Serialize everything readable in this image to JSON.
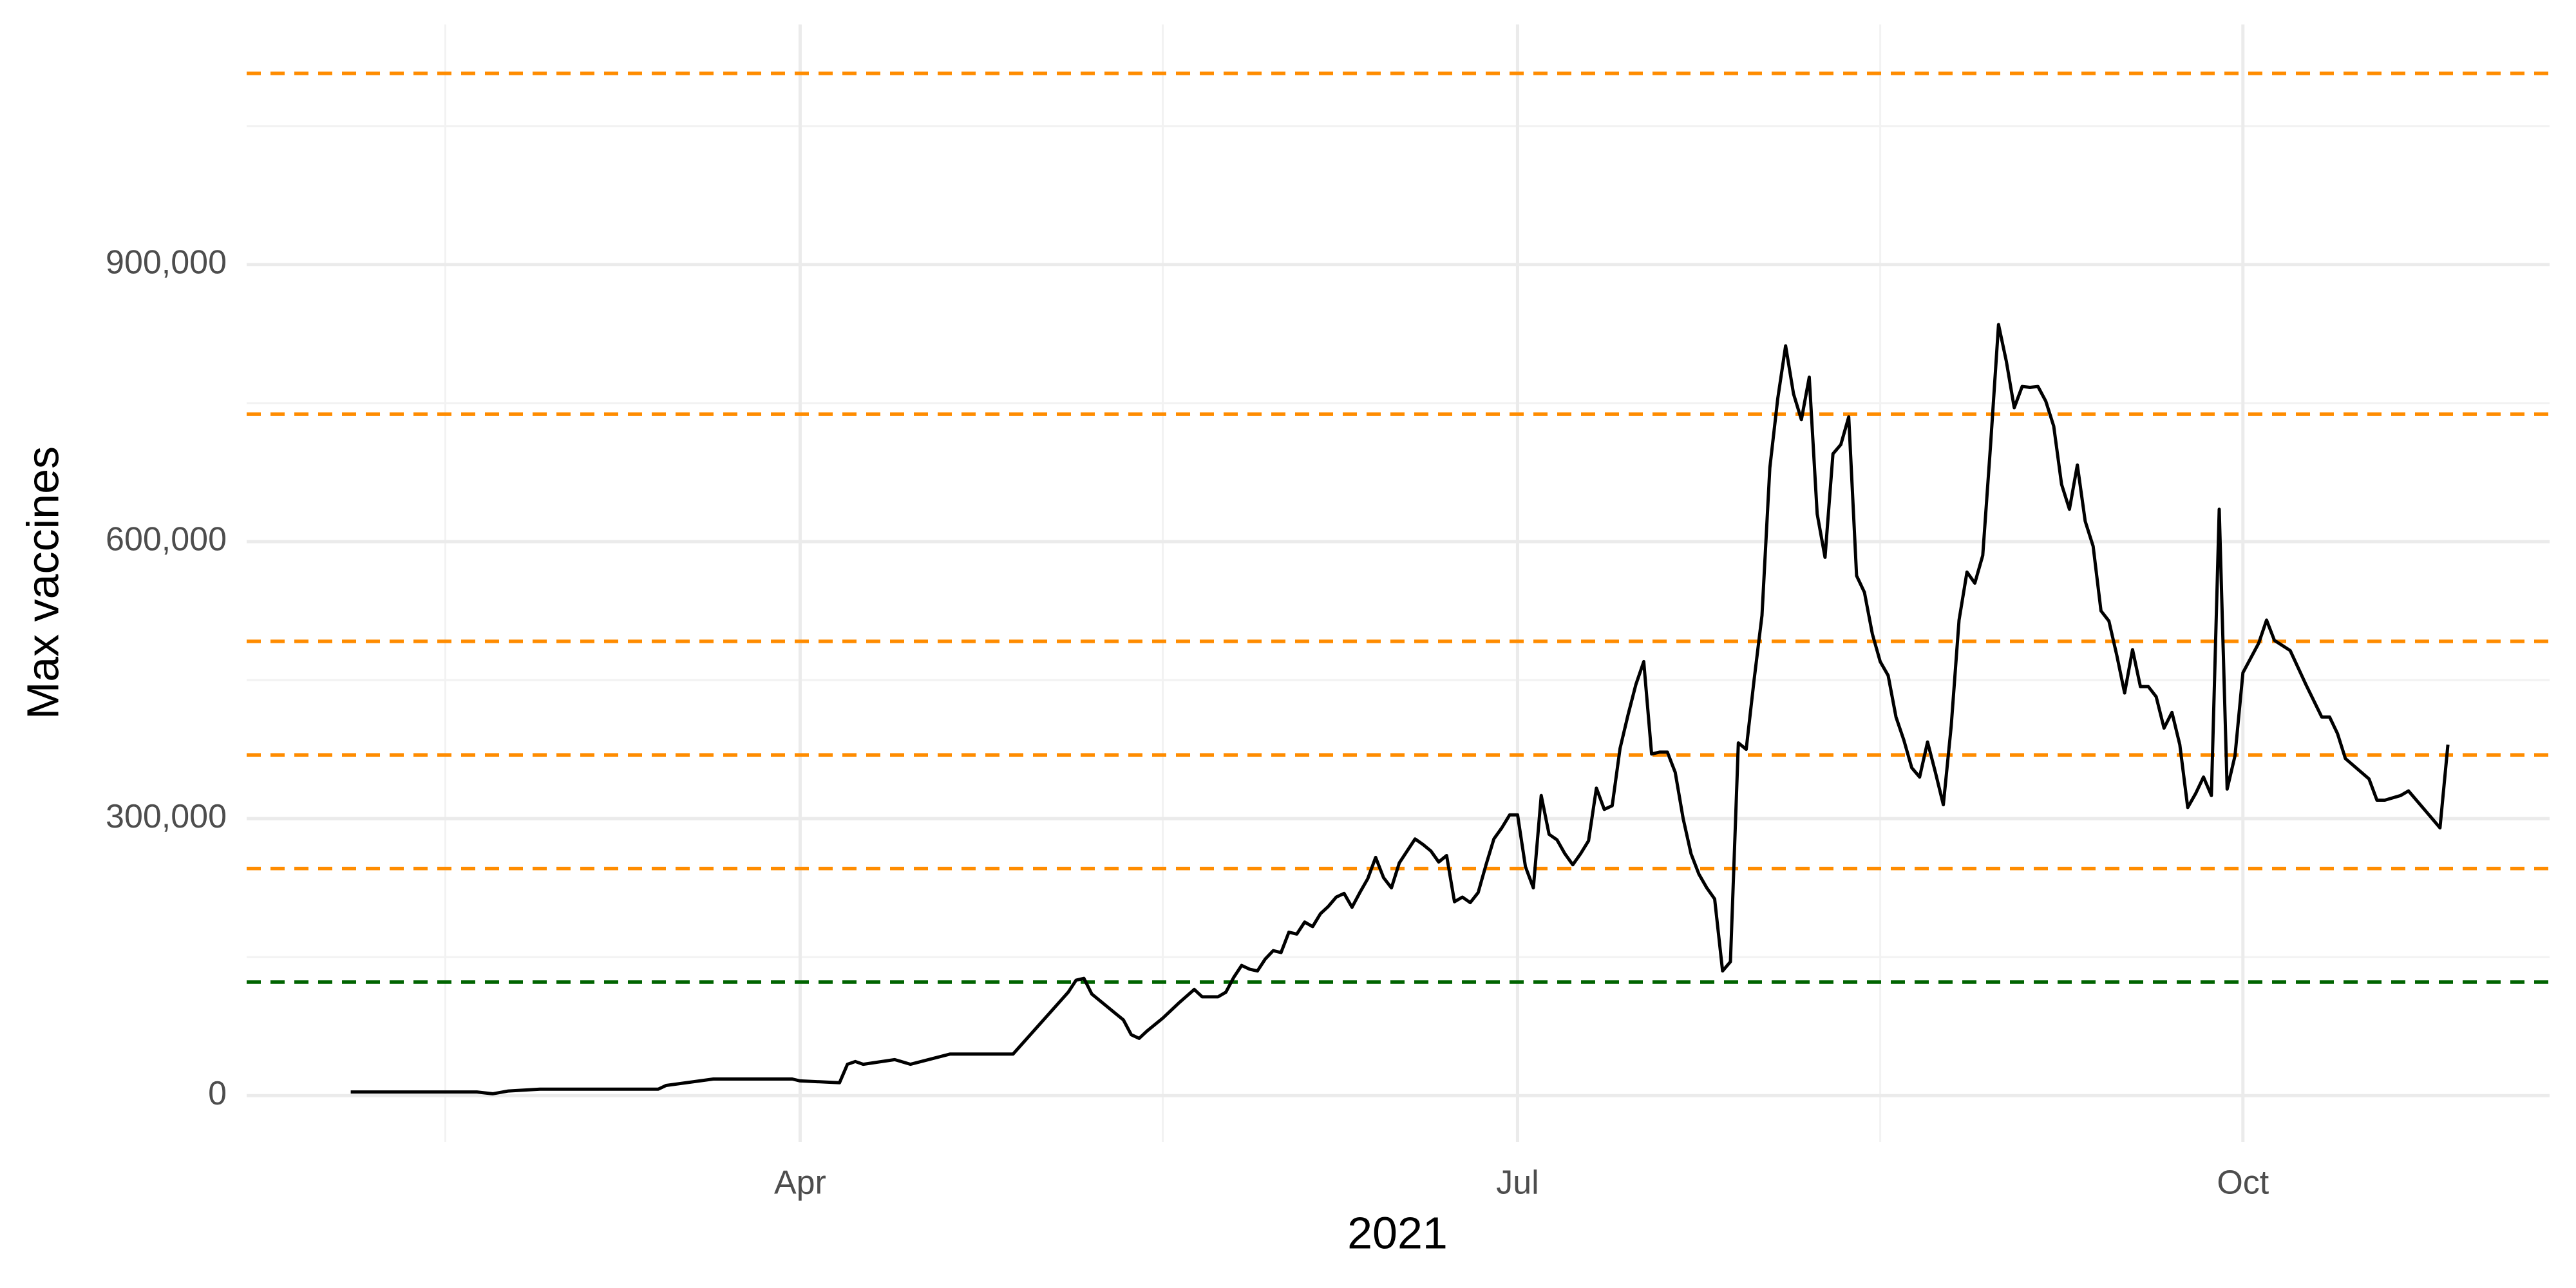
{
  "chart_data": {
    "type": "line",
    "x_label": "2021",
    "y_label": "Max vaccines",
    "xlim": [
      20.8,
      312.9
    ],
    "ylim": [
      -50000,
      1160000
    ],
    "xticks": [
      {
        "value": 91,
        "label": "Apr"
      },
      {
        "value": 182,
        "label": "Jul"
      },
      {
        "value": 274,
        "label": "Oct"
      }
    ],
    "xminor": [
      46,
      137,
      228
    ],
    "yticks": [
      0,
      {
        "value": 300000,
        "label": "300,000"
      },
      {
        "value": 600000,
        "label": "600,000"
      },
      {
        "value": 900000,
        "label": "900,000"
      }
    ],
    "yminor": [
      150000,
      450000,
      750000,
      1050000
    ],
    "grid": true,
    "color": "#000000",
    "x": [
      34,
      50,
      52,
      54,
      58,
      73,
      74,
      80,
      90,
      91,
      96,
      97,
      98,
      99,
      103,
      105,
      110,
      118,
      125,
      126,
      127,
      128,
      131,
      132,
      133,
      134,
      135,
      137,
      139,
      141,
      142,
      144,
      145,
      146,
      147,
      148,
      149,
      150,
      151,
      152,
      153,
      154,
      155,
      156,
      157,
      158,
      159,
      160,
      161,
      162,
      163,
      164,
      165,
      166,
      167,
      168,
      169,
      170,
      171,
      172,
      173,
      174,
      175,
      176,
      177,
      178,
      179,
      180,
      181,
      182,
      183,
      184,
      185,
      186,
      187,
      188,
      189,
      190,
      191,
      192,
      193,
      194,
      195,
      196,
      197,
      198,
      199,
      200,
      201,
      202,
      203,
      204,
      205,
      206,
      207,
      208,
      209,
      210,
      211,
      212,
      213,
      214,
      215,
      216,
      217,
      218,
      219,
      220,
      221,
      222,
      223,
      224,
      225,
      226,
      227,
      228,
      229,
      230,
      231,
      232,
      233,
      234,
      235,
      236,
      237,
      238,
      239,
      240,
      241,
      242,
      243,
      244,
      245,
      246,
      247,
      248,
      249,
      250,
      251,
      252,
      253,
      254,
      255,
      256,
      257,
      258,
      259,
      260,
      261,
      262,
      263,
      264,
      265,
      266,
      267,
      268,
      269,
      270,
      271,
      272,
      273,
      274,
      276,
      277,
      278,
      280,
      282,
      284,
      285,
      286,
      287,
      290,
      291,
      292,
      294,
      295,
      298,
      299,
      300
    ],
    "values": [
      4000,
      4000,
      2000,
      5000,
      7000,
      7000,
      11000,
      18000,
      18000,
      16000,
      14000,
      34000,
      37000,
      34000,
      39000,
      34000,
      45000,
      45000,
      112000,
      125000,
      127000,
      110000,
      89000,
      82000,
      66000,
      62000,
      70000,
      84000,
      100000,
      115000,
      107000,
      107000,
      112000,
      128000,
      141000,
      137000,
      135000,
      148000,
      157000,
      155000,
      177000,
      175000,
      188000,
      183000,
      197000,
      205000,
      215000,
      219000,
      204000,
      220000,
      235000,
      258000,
      236000,
      225000,
      252000,
      265000,
      278000,
      272000,
      265000,
      253000,
      260000,
      210000,
      215000,
      209000,
      220000,
      250000,
      278000,
      290000,
      304000,
      304000,
      248000,
      225000,
      325000,
      283000,
      277000,
      262000,
      250000,
      262000,
      276000,
      333000,
      310000,
      314000,
      376000,
      412000,
      445000,
      470000,
      370000,
      372000,
      372000,
      350000,
      300000,
      262000,
      240000,
      225000,
      213000,
      135000,
      145000,
      382000,
      375000,
      450000,
      520000,
      680000,
      755000,
      812000,
      760000,
      732000,
      778000,
      630000,
      583000,
      695000,
      705000,
      735000,
      563000,
      545000,
      500000,
      470000,
      455000,
      410000,
      385000,
      355000,
      345000,
      383000,
      350000,
      315000,
      400000,
      515000,
      567000,
      555000,
      585000,
      705000,
      835000,
      795000,
      745000,
      768000,
      767000,
      768000,
      752000,
      725000,
      662000,
      635000,
      683000,
      622000,
      595000,
      525000,
      514000,
      477000,
      436000,
      483000,
      443000,
      443000,
      432000,
      398000,
      415000,
      380000,
      312000,
      327000,
      345000,
      325000,
      635000,
      332000,
      368000,
      458000,
      490000,
      515000,
      493000,
      482000,
      445000,
      410000,
      410000,
      392000,
      365000,
      343000,
      320000,
      320000,
      325000,
      330000,
      300000,
      290000,
      380000
    ],
    "reference_lines": [
      {
        "value": 123000,
        "color": "#006400"
      },
      {
        "value": 246000,
        "color": "#ff8c00"
      },
      {
        "value": 369000,
        "color": "#ff8c00"
      },
      {
        "value": 492000,
        "color": "#ff8c00"
      },
      {
        "value": 738000,
        "color": "#ff8c00"
      },
      {
        "value": 1107000,
        "color": "#ff8c00"
      }
    ]
  }
}
